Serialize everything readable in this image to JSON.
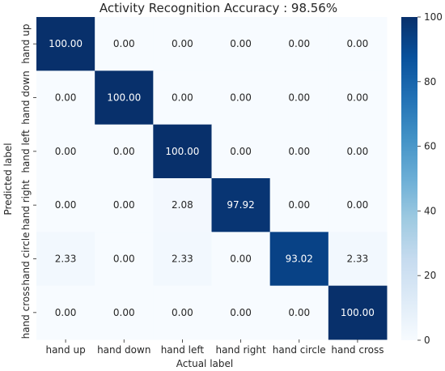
{
  "chart_data": {
    "type": "heatmap",
    "title": "Activity Recognition Accuracy : 98.56%",
    "xlabel": "Actual label",
    "ylabel": "Predicted label",
    "x_categories": [
      "hand up",
      "hand down",
      "hand left",
      "hand right",
      "hand circle",
      "hand cross"
    ],
    "y_categories": [
      "hand up",
      "hand down",
      "hand left",
      "hand right",
      "hand circle",
      "hand cross"
    ],
    "values": [
      [
        100.0,
        0.0,
        0.0,
        0.0,
        0.0,
        0.0
      ],
      [
        0.0,
        100.0,
        0.0,
        0.0,
        0.0,
        0.0
      ],
      [
        0.0,
        0.0,
        100.0,
        0.0,
        0.0,
        0.0
      ],
      [
        0.0,
        0.0,
        2.08,
        97.92,
        0.0,
        0.0
      ],
      [
        2.33,
        0.0,
        2.33,
        0.0,
        93.02,
        2.33
      ],
      [
        0.0,
        0.0,
        0.0,
        0.0,
        0.0,
        100.0
      ]
    ],
    "value_format": "0.00",
    "colormap": "Blues",
    "colorbar": {
      "min": 0,
      "max": 100,
      "ticks": [
        0,
        20,
        40,
        60,
        80,
        100
      ]
    },
    "colors": {
      "low": "#f7fbff",
      "high": "#08306b",
      "dark_text": "#262626",
      "light_text": "#ffffff"
    }
  }
}
